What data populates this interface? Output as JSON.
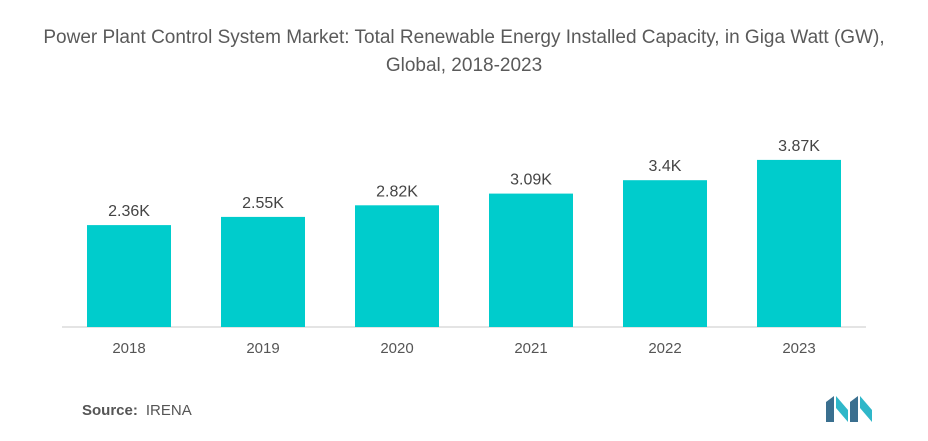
{
  "chart_data": {
    "type": "bar",
    "title": "Power Plant Control System Market: Total Renewable Energy Installed Capacity, in Giga Watt (GW), Global, 2018-2023",
    "categories": [
      "2018",
      "2019",
      "2020",
      "2021",
      "2022",
      "2023"
    ],
    "values": [
      2360,
      2550,
      2820,
      3090,
      3400,
      3870
    ],
    "data_labels": [
      "2.36K",
      "2.55K",
      "2.82K",
      "3.09K",
      "3.4K",
      "3.87K"
    ],
    "xlabel": "",
    "ylabel": "",
    "ylim": [
      0,
      4100
    ],
    "grid": false,
    "legend": "none",
    "bar_color": "#00CCCC"
  },
  "source": {
    "label": "Source:",
    "text": "IRENA"
  },
  "colors": {
    "bar": "#00CCCC",
    "logo_dark": "#3a6f8f",
    "logo_light": "#2fb7c9",
    "axis": "#c8c8c8"
  },
  "logo": {
    "icon": "mordor-intelligence-logo-icon"
  }
}
